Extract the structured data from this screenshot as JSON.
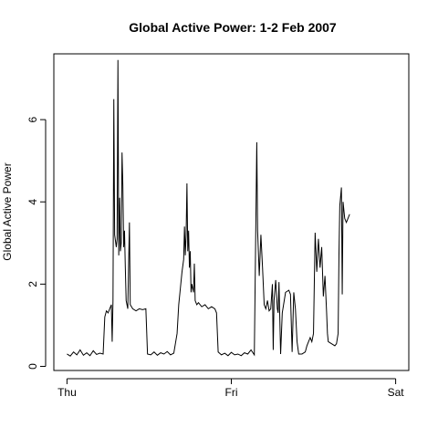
{
  "chart_data": {
    "type": "line",
    "title": "Global Active Power: 1-2 Feb 2007",
    "xlabel": "",
    "ylabel": "Global Active Power",
    "x_ticks": [
      "Thu",
      "Fri",
      "Sat"
    ],
    "x_tick_positions": [
      0,
      1,
      2
    ],
    "x_unit": "days from Thu 00:00",
    "xlim": [
      -0.08,
      2.08
    ],
    "y_ticks": [
      0,
      2,
      4,
      6
    ],
    "ylim": [
      -0.1,
      7.6
    ],
    "grid": false,
    "series": [
      {
        "name": "",
        "color": "#000000",
        "points": [
          [
            0.0,
            0.3
          ],
          [
            0.02,
            0.25
          ],
          [
            0.04,
            0.35
          ],
          [
            0.06,
            0.28
          ],
          [
            0.08,
            0.4
          ],
          [
            0.1,
            0.27
          ],
          [
            0.12,
            0.33
          ],
          [
            0.14,
            0.26
          ],
          [
            0.16,
            0.38
          ],
          [
            0.18,
            0.29
          ],
          [
            0.2,
            0.32
          ],
          [
            0.22,
            0.3
          ],
          [
            0.23,
            1.2
          ],
          [
            0.24,
            1.35
          ],
          [
            0.25,
            1.3
          ],
          [
            0.26,
            1.4
          ],
          [
            0.27,
            1.5
          ],
          [
            0.275,
            0.6
          ],
          [
            0.28,
            1.6
          ],
          [
            0.285,
            6.5
          ],
          [
            0.29,
            3.2
          ],
          [
            0.3,
            2.9
          ],
          [
            0.305,
            3.1
          ],
          [
            0.31,
            7.45
          ],
          [
            0.315,
            2.7
          ],
          [
            0.32,
            4.1
          ],
          [
            0.325,
            2.8
          ],
          [
            0.33,
            3.0
          ],
          [
            0.335,
            5.2
          ],
          [
            0.34,
            4.4
          ],
          [
            0.345,
            2.9
          ],
          [
            0.35,
            3.3
          ],
          [
            0.355,
            2.4
          ],
          [
            0.36,
            1.6
          ],
          [
            0.37,
            1.4
          ],
          [
            0.38,
            3.5
          ],
          [
            0.385,
            1.5
          ],
          [
            0.4,
            1.4
          ],
          [
            0.42,
            1.35
          ],
          [
            0.44,
            1.4
          ],
          [
            0.46,
            1.38
          ],
          [
            0.48,
            1.4
          ],
          [
            0.49,
            0.3
          ],
          [
            0.51,
            0.28
          ],
          [
            0.53,
            0.35
          ],
          [
            0.55,
            0.27
          ],
          [
            0.57,
            0.33
          ],
          [
            0.59,
            0.3
          ],
          [
            0.61,
            0.36
          ],
          [
            0.63,
            0.28
          ],
          [
            0.65,
            0.32
          ],
          [
            0.67,
            0.8
          ],
          [
            0.68,
            1.5
          ],
          [
            0.69,
            1.9
          ],
          [
            0.7,
            2.3
          ],
          [
            0.71,
            2.6
          ],
          [
            0.715,
            3.4
          ],
          [
            0.72,
            2.7
          ],
          [
            0.725,
            3.2
          ],
          [
            0.73,
            4.45
          ],
          [
            0.735,
            2.8
          ],
          [
            0.74,
            3.3
          ],
          [
            0.745,
            2.4
          ],
          [
            0.75,
            2.8
          ],
          [
            0.755,
            1.8
          ],
          [
            0.76,
            2.0
          ],
          [
            0.77,
            1.8
          ],
          [
            0.775,
            2.5
          ],
          [
            0.78,
            1.6
          ],
          [
            0.79,
            1.5
          ],
          [
            0.8,
            1.55
          ],
          [
            0.82,
            1.45
          ],
          [
            0.84,
            1.5
          ],
          [
            0.86,
            1.4
          ],
          [
            0.88,
            1.45
          ],
          [
            0.9,
            1.4
          ],
          [
            0.91,
            1.3
          ],
          [
            0.92,
            0.35
          ],
          [
            0.94,
            0.28
          ],
          [
            0.96,
            0.32
          ],
          [
            0.98,
            0.26
          ],
          [
            1.0,
            0.34
          ],
          [
            1.02,
            0.28
          ],
          [
            1.04,
            0.3
          ],
          [
            1.06,
            0.26
          ],
          [
            1.08,
            0.33
          ],
          [
            1.1,
            0.3
          ],
          [
            1.12,
            0.4
          ],
          [
            1.14,
            0.28
          ],
          [
            1.155,
            5.45
          ],
          [
            1.16,
            3.3
          ],
          [
            1.17,
            2.2
          ],
          [
            1.175,
            2.7
          ],
          [
            1.18,
            3.2
          ],
          [
            1.19,
            2.4
          ],
          [
            1.2,
            1.5
          ],
          [
            1.21,
            1.4
          ],
          [
            1.22,
            1.6
          ],
          [
            1.23,
            1.35
          ],
          [
            1.24,
            1.4
          ],
          [
            1.25,
            2.0
          ],
          [
            1.255,
            0.4
          ],
          [
            1.26,
            1.6
          ],
          [
            1.27,
            2.1
          ],
          [
            1.28,
            1.4
          ],
          [
            1.285,
            1.3
          ],
          [
            1.29,
            2.05
          ],
          [
            1.3,
            0.3
          ],
          [
            1.31,
            1.3
          ],
          [
            1.33,
            1.8
          ],
          [
            1.35,
            1.85
          ],
          [
            1.36,
            1.75
          ],
          [
            1.37,
            0.35
          ],
          [
            1.38,
            1.8
          ],
          [
            1.39,
            1.4
          ],
          [
            1.4,
            0.6
          ],
          [
            1.41,
            0.3
          ],
          [
            1.43,
            0.3
          ],
          [
            1.45,
            0.35
          ],
          [
            1.46,
            0.5
          ],
          [
            1.48,
            0.7
          ],
          [
            1.49,
            0.6
          ],
          [
            1.5,
            0.8
          ],
          [
            1.51,
            3.25
          ],
          [
            1.52,
            2.3
          ],
          [
            1.53,
            3.1
          ],
          [
            1.54,
            2.4
          ],
          [
            1.55,
            2.9
          ],
          [
            1.56,
            1.7
          ],
          [
            1.57,
            2.2
          ],
          [
            1.58,
            1.3
          ],
          [
            1.585,
            0.8
          ],
          [
            1.59,
            0.6
          ],
          [
            1.61,
            0.55
          ],
          [
            1.63,
            0.5
          ],
          [
            1.64,
            0.55
          ],
          [
            1.65,
            0.8
          ],
          [
            1.655,
            2.7
          ],
          [
            1.66,
            3.9
          ],
          [
            1.67,
            4.35
          ],
          [
            1.675,
            1.75
          ],
          [
            1.68,
            4.0
          ],
          [
            1.69,
            3.6
          ],
          [
            1.7,
            3.5
          ],
          [
            1.71,
            3.6
          ],
          [
            1.72,
            3.7
          ]
        ]
      }
    ]
  }
}
